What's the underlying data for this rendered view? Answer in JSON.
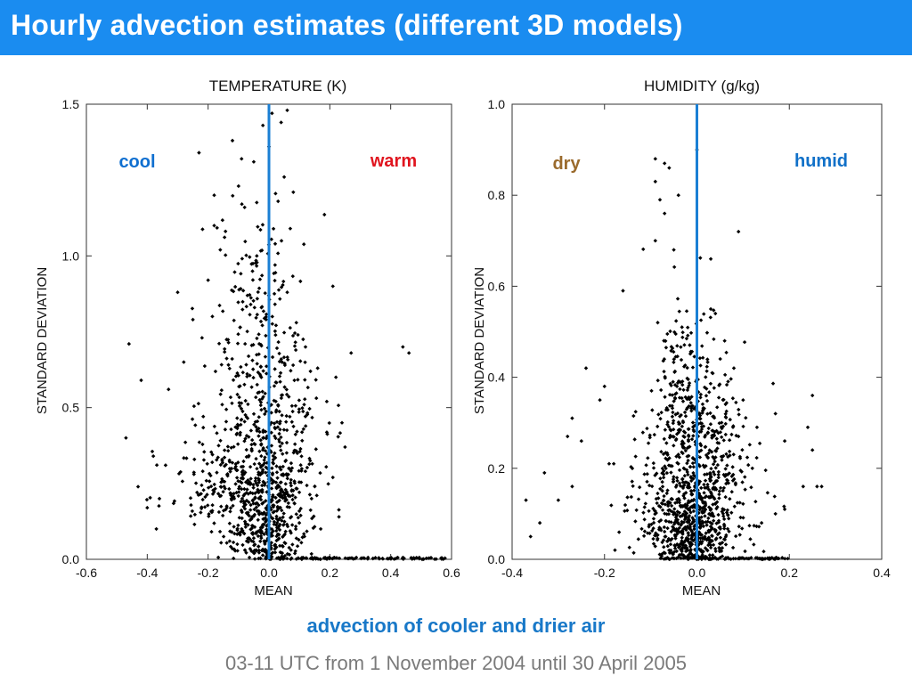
{
  "page": {
    "title": "Hourly advection estimates (different 3D models)",
    "caption": "advection of cooler and drier air",
    "subcaption": "03-11 UTC from 1 November 2004 until 30 April 2005"
  },
  "colors": {
    "title_bar": "#1a8cf0",
    "mean_line": "#1a7fd4",
    "cool": "#0f6fd0",
    "warm": "#e0141e",
    "dry": "#9a6a2c",
    "humid": "#1070c8",
    "caption": "#1878c8",
    "subcaption": "#7a7a7a",
    "points": "#000000"
  },
  "chart_data": [
    {
      "type": "scatter",
      "title": "TEMPERATURE (K)",
      "xlabel": "MEAN",
      "ylabel": "STANDARD DEVIATION",
      "xlim": [
        -0.6,
        0.6
      ],
      "ylim": [
        0.0,
        1.5
      ],
      "xticks": [
        -0.6,
        -0.4,
        -0.2,
        0.0,
        0.2,
        0.4,
        0.6
      ],
      "xtick_labels": [
        "-0.6",
        "-0.4",
        "-0.2",
        "0.0",
        "0.2",
        "0.4",
        "0.6"
      ],
      "yticks": [
        0.0,
        0.5,
        1.0,
        1.5
      ],
      "ytick_labels": [
        "0.0",
        "0.5",
        "1.0",
        "1.5"
      ],
      "vline_x": 0.0,
      "annotations": [
        {
          "text": "cool",
          "color_key": "cool"
        },
        {
          "text": "warm",
          "color_key": "warm"
        }
      ],
      "points": [
        [
          -0.46,
          0.71
        ],
        [
          -0.42,
          0.59
        ],
        [
          -0.47,
          0.4
        ],
        [
          -0.38,
          0.34
        ],
        [
          -0.36,
          0.2
        ],
        [
          -0.4,
          0.17
        ],
        [
          -0.37,
          0.1
        ],
        [
          -0.33,
          0.56
        ],
        [
          -0.3,
          0.88
        ],
        [
          -0.28,
          0.65
        ],
        [
          -0.25,
          0.79
        ],
        [
          -0.22,
          0.73
        ],
        [
          -0.2,
          0.92
        ],
        [
          -0.18,
          1.1
        ],
        [
          -0.16,
          1.02
        ],
        [
          -0.23,
          1.34
        ],
        [
          -0.18,
          1.2
        ],
        [
          -0.12,
          1.38
        ],
        [
          -0.1,
          1.23
        ],
        [
          -0.08,
          1.16
        ],
        [
          -0.05,
          1.31
        ],
        [
          -0.04,
          1.0
        ],
        [
          -0.06,
          0.84
        ],
        [
          -0.02,
          1.43
        ],
        [
          0.01,
          1.47
        ],
        [
          0.04,
          1.44
        ],
        [
          0.06,
          1.48
        ],
        [
          0.05,
          1.26
        ],
        [
          0.03,
          1.18
        ],
        [
          0.07,
          1.09
        ],
        [
          0.02,
          0.97
        ],
        [
          0.06,
          0.88
        ],
        [
          0.09,
          0.78
        ],
        [
          0.12,
          0.7
        ],
        [
          0.16,
          0.63
        ],
        [
          0.21,
          0.9
        ],
        [
          0.22,
          0.6
        ],
        [
          0.19,
          0.52
        ],
        [
          0.24,
          0.45
        ],
        [
          0.27,
          0.68
        ],
        [
          0.25,
          0.37
        ],
        [
          0.21,
          0.27
        ],
        [
          0.23,
          0.14
        ],
        [
          0.17,
          0.1
        ],
        [
          0.14,
          0.2
        ],
        [
          0.44,
          0.7
        ],
        [
          0.46,
          0.68
        ],
        [
          -0.09,
          1.32
        ],
        [
          0.0,
          1.36
        ],
        [
          0.08,
          1.21
        ]
      ],
      "clusters": [
        {
          "cx": -0.02,
          "cy": 0.28,
          "sx": 0.09,
          "sy": 0.16,
          "n": 380
        },
        {
          "cx": 0.0,
          "cy": 0.12,
          "sx": 0.05,
          "sy": 0.09,
          "n": 280
        },
        {
          "cx": -0.06,
          "cy": 0.6,
          "sx": 0.08,
          "sy": 0.2,
          "n": 160
        },
        {
          "cx": -0.04,
          "cy": 0.95,
          "sx": 0.07,
          "sy": 0.14,
          "n": 60
        },
        {
          "cx": 0.05,
          "cy": 0.45,
          "sx": 0.08,
          "sy": 0.2,
          "n": 90
        },
        {
          "cx": -0.18,
          "cy": 0.22,
          "sx": 0.08,
          "sy": 0.08,
          "n": 90
        }
      ],
      "baseline_points": {
        "y": 0.0,
        "xmin": -0.05,
        "xmax": 0.58,
        "n": 120
      }
    },
    {
      "type": "scatter",
      "title": "HUMIDITY (g/kg)",
      "xlabel": "MEAN",
      "ylabel": "STANDARD DEVIATION",
      "xlim": [
        -0.4,
        0.4
      ],
      "ylim": [
        0.0,
        1.0
      ],
      "xticks": [
        -0.4,
        -0.2,
        0.0,
        0.2,
        0.4
      ],
      "xtick_labels": [
        "-0.4",
        "-0.2",
        "0.0",
        "0.2",
        "0.4"
      ],
      "yticks": [
        0.0,
        0.2,
        0.4,
        0.6,
        0.8,
        1.0
      ],
      "ytick_labels": [
        "0.0",
        "0.2",
        "0.4",
        "0.6",
        "0.8",
        "1.0"
      ],
      "vline_x": 0.0,
      "annotations": [
        {
          "text": "dry",
          "color_key": "dry"
        },
        {
          "text": "humid",
          "color_key": "humid"
        }
      ],
      "points": [
        [
          -0.09,
          0.88
        ],
        [
          -0.07,
          0.87
        ],
        [
          -0.06,
          0.86
        ],
        [
          -0.09,
          0.83
        ],
        [
          -0.08,
          0.79
        ],
        [
          -0.07,
          0.76
        ],
        [
          -0.09,
          0.7
        ],
        [
          -0.05,
          0.68
        ],
        [
          -0.16,
          0.59
        ],
        [
          -0.24,
          0.42
        ],
        [
          -0.2,
          0.38
        ],
        [
          -0.21,
          0.35
        ],
        [
          -0.27,
          0.31
        ],
        [
          -0.28,
          0.27
        ],
        [
          -0.25,
          0.26
        ],
        [
          -0.19,
          0.21
        ],
        [
          -0.18,
          0.21
        ],
        [
          -0.27,
          0.16
        ],
        [
          -0.3,
          0.13
        ],
        [
          -0.34,
          0.08
        ],
        [
          -0.36,
          0.05
        ],
        [
          -0.37,
          0.13
        ],
        [
          -0.33,
          0.19
        ],
        [
          0.03,
          0.66
        ],
        [
          0.09,
          0.72
        ],
        [
          0.03,
          0.55
        ],
        [
          0.04,
          0.54
        ],
        [
          0.08,
          0.42
        ],
        [
          0.1,
          0.35
        ],
        [
          0.13,
          0.29
        ],
        [
          0.17,
          0.32
        ],
        [
          0.19,
          0.26
        ],
        [
          0.24,
          0.29
        ],
        [
          0.25,
          0.24
        ],
        [
          0.25,
          0.36
        ],
        [
          0.23,
          0.16
        ],
        [
          0.26,
          0.16
        ],
        [
          0.27,
          0.16
        ],
        [
          0.19,
          0.11
        ],
        [
          0.17,
          0.1
        ],
        [
          0.14,
          0.08
        ],
        [
          0.0,
          0.9
        ],
        [
          -0.04,
          0.8
        ],
        [
          0.06,
          0.48
        ],
        [
          0.12,
          0.2
        ]
      ],
      "clusters": [
        {
          "cx": 0.0,
          "cy": 0.22,
          "sx": 0.05,
          "sy": 0.13,
          "n": 420
        },
        {
          "cx": -0.01,
          "cy": 0.07,
          "sx": 0.04,
          "sy": 0.05,
          "n": 320
        },
        {
          "cx": -0.03,
          "cy": 0.38,
          "sx": 0.04,
          "sy": 0.1,
          "n": 120
        },
        {
          "cx": 0.05,
          "cy": 0.18,
          "sx": 0.05,
          "sy": 0.1,
          "n": 130
        },
        {
          "cx": -0.07,
          "cy": 0.12,
          "sx": 0.05,
          "sy": 0.07,
          "n": 110
        }
      ],
      "baseline_points": {
        "y": 0.0,
        "xmin": -0.08,
        "xmax": 0.2,
        "n": 90
      }
    }
  ]
}
